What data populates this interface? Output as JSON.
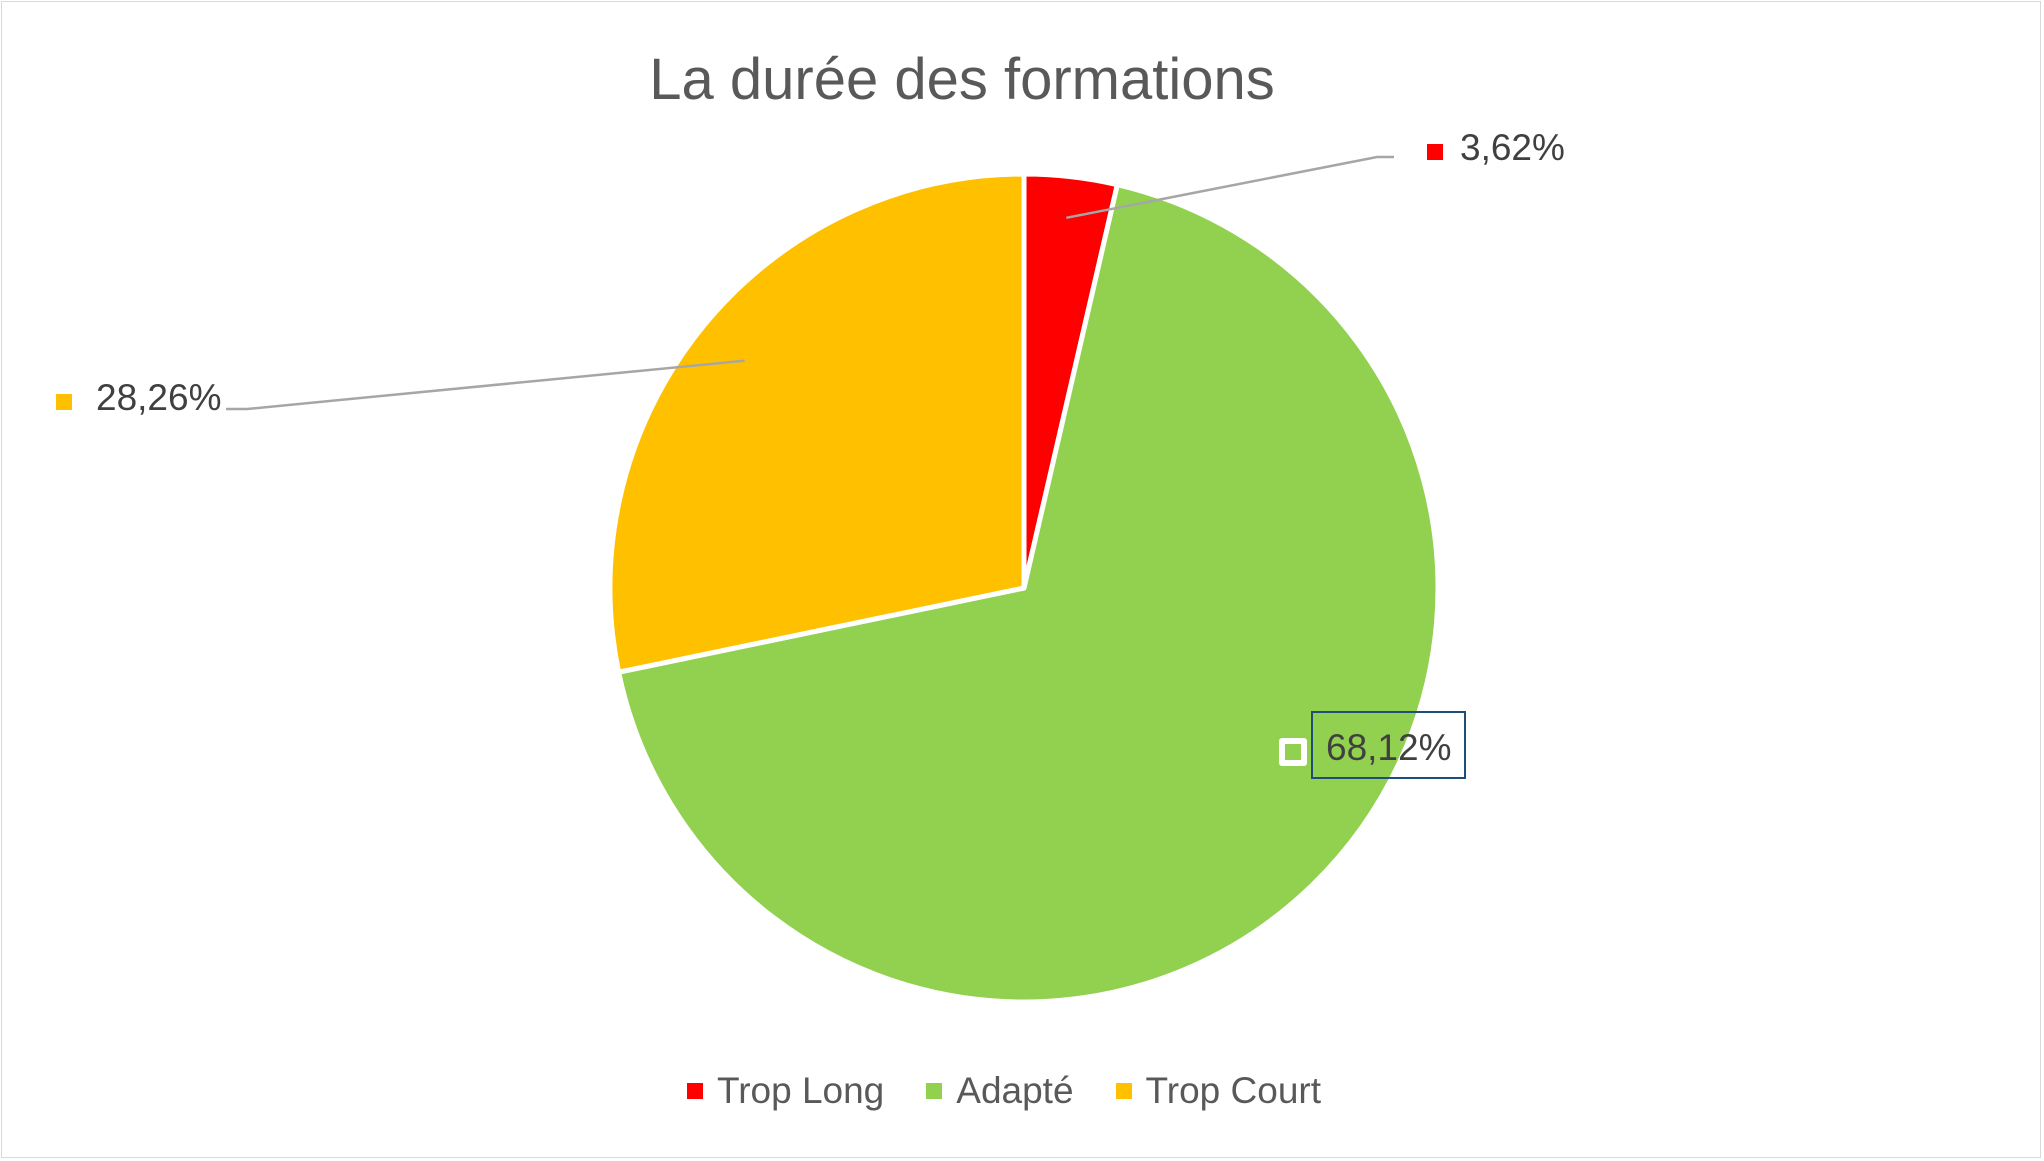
{
  "chart_data": {
    "type": "pie",
    "title": "La durée des formations",
    "categories": [
      "Trop Long",
      "Adapté",
      "Trop Court"
    ],
    "values": [
      3.62,
      68.12,
      28.26
    ],
    "labels": [
      "3,62%",
      "68,12%",
      "28,26%"
    ],
    "colors": [
      "#ff0000",
      "#92d050",
      "#ffc000"
    ],
    "legend_position": "bottom",
    "start_angle_deg": 0,
    "direction": "clockwise",
    "legend": [
      {
        "label": "Trop Long",
        "color": "#ff0000"
      },
      {
        "label": "Adapté",
        "color": "#92d050"
      },
      {
        "label": "Trop Court",
        "color": "#ffc000"
      }
    ]
  }
}
